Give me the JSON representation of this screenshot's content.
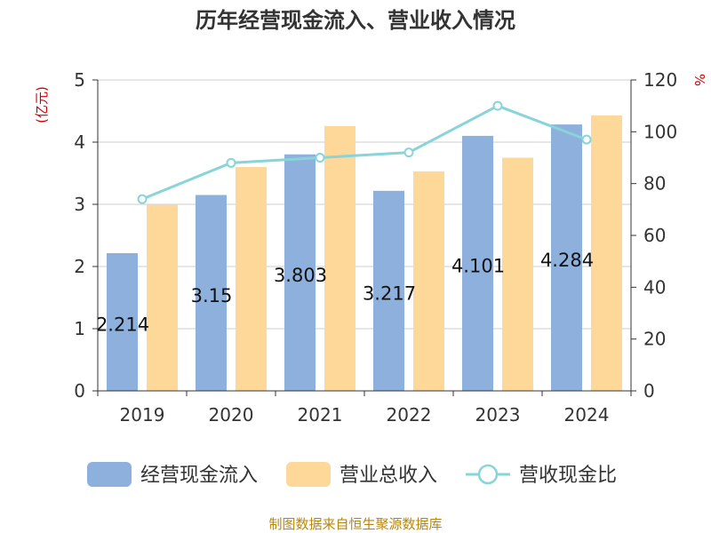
{
  "title": "历年经营现金流入、营业收入情况",
  "source": "制图数据来自恒生聚源数据库",
  "chart_data": {
    "type": "bar",
    "title": "历年经营现金流入、营业收入情况",
    "categories": [
      "2019",
      "2020",
      "2021",
      "2022",
      "2023",
      "2024"
    ],
    "y_left": {
      "unit": "(亿元)",
      "ylim": [
        0,
        5
      ],
      "ticks": [
        0,
        1,
        2,
        3,
        4,
        5
      ]
    },
    "y_right": {
      "unit": "%",
      "ylim": [
        0,
        120
      ],
      "ticks": [
        0,
        20,
        40,
        60,
        80,
        100,
        120
      ]
    },
    "grid": true,
    "legend_position": "bottom",
    "series": [
      {
        "name": "经营现金流入",
        "type": "bar",
        "axis": "left",
        "color": "#8eb0dc",
        "values": [
          2.214,
          3.15,
          3.803,
          3.217,
          4.101,
          4.284
        ],
        "labels": [
          "2.214",
          "3.15",
          "3.803",
          "3.217",
          "4.101",
          "4.284"
        ]
      },
      {
        "name": "营业总收入",
        "type": "bar",
        "axis": "left",
        "color": "#fed898",
        "values": [
          2.99,
          3.6,
          4.26,
          3.53,
          3.75,
          4.43
        ]
      },
      {
        "name": "营收现金比",
        "type": "line",
        "axis": "right",
        "color": "#88d4d8",
        "values": [
          74,
          88,
          90,
          92,
          110,
          97
        ]
      }
    ]
  }
}
